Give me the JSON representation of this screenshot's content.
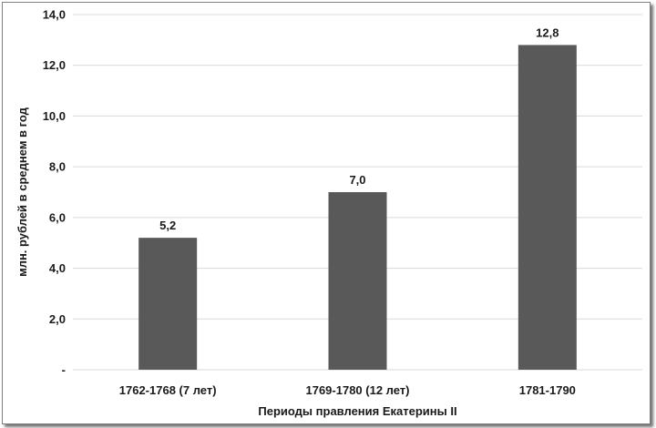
{
  "chart_data": {
    "type": "bar",
    "categories": [
      "1762-1768 (7 лет)",
      "1769-1780 (12 лет)",
      "1781-1790"
    ],
    "values": [
      5.2,
      7.0,
      12.8
    ],
    "data_labels": [
      "5,2",
      "7,0",
      "12,8"
    ],
    "title": "",
    "xlabel": "Периоды правления Екатерины II",
    "ylabel": "млн. рублей в среднем в год",
    "ylim": [
      0,
      14
    ],
    "y_ticks": [
      0,
      2,
      4,
      6,
      8,
      10,
      12,
      14
    ],
    "y_tick_labels": [
      "-",
      "2,0",
      "4,0",
      "6,0",
      "8,0",
      "10,0",
      "12,0",
      "14,0"
    ],
    "grid": true,
    "bar_color": "#595959",
    "grid_color": "#d9d9d9"
  }
}
